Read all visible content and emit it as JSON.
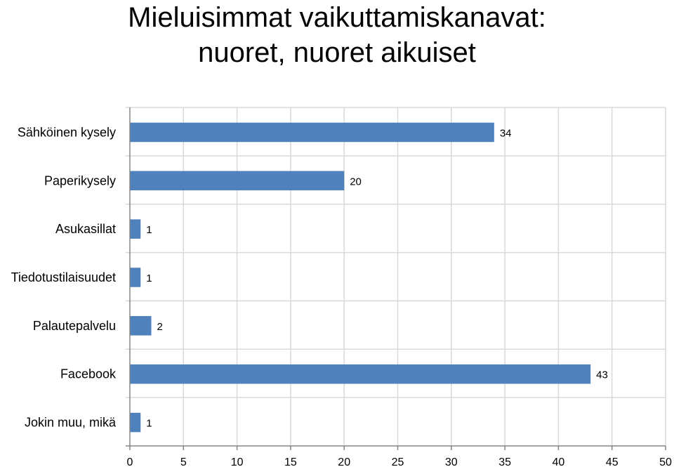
{
  "chart_data": {
    "type": "bar",
    "orientation": "horizontal",
    "title_lines": [
      "Mieluisimmat vaikuttamiskanavat:",
      "nuoret, nuoret aikuiset"
    ],
    "categories": [
      "Sähköinen kysely",
      "Paperikysely",
      "Asukasillat",
      "Tiedotustilaisuudet",
      "Palautepalvelu",
      "Facebook",
      "Jokin muu, mikä"
    ],
    "values": [
      34,
      20,
      1,
      1,
      2,
      43,
      1
    ],
    "xlim": [
      0,
      50
    ],
    "xticks": [
      0,
      5,
      10,
      15,
      20,
      25,
      30,
      35,
      40,
      45,
      50
    ],
    "grid": true,
    "legend": "none",
    "bar_color": "#4F81BD",
    "grid_color": "#D9D9D9"
  }
}
